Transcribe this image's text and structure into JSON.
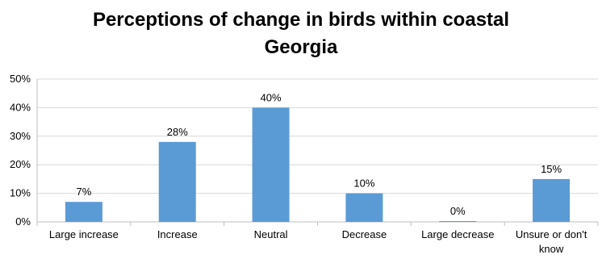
{
  "chart_data": {
    "type": "bar",
    "title_lines": [
      "Perceptions of change in birds within coastal",
      "Georgia"
    ],
    "categories": [
      [
        "Large increase"
      ],
      [
        "Increase"
      ],
      [
        "Neutral"
      ],
      [
        "Decrease"
      ],
      [
        "Large decrease"
      ],
      [
        "Unsure or don't",
        "know"
      ]
    ],
    "values": [
      7,
      28,
      40,
      10,
      0,
      15
    ],
    "data_labels": [
      "7%",
      "28%",
      "40%",
      "10%",
      "0%",
      "15%"
    ],
    "y_ticks": [
      0,
      10,
      20,
      30,
      40,
      50
    ],
    "y_tick_labels": [
      "0%",
      "10%",
      "20%",
      "30%",
      "40%",
      "50%"
    ],
    "ylim": [
      0,
      50
    ],
    "xlabel": "",
    "ylabel": "",
    "grid": true,
    "legend": "none",
    "bar_color": "#5B9BD5",
    "grid_color": "#D9D9D9",
    "axis_color": "#BFBFBF"
  }
}
